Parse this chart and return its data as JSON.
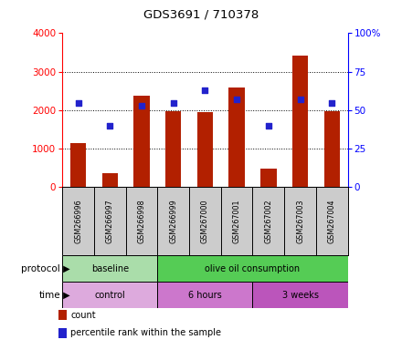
{
  "title": "GDS3691 / 710378",
  "samples": [
    "GSM266996",
    "GSM266997",
    "GSM266998",
    "GSM266999",
    "GSM267000",
    "GSM267001",
    "GSM267002",
    "GSM267003",
    "GSM267004"
  ],
  "counts": [
    1150,
    370,
    2380,
    1980,
    1960,
    2600,
    490,
    3430,
    1970
  ],
  "percentile_ranks": [
    55,
    40,
    53,
    55,
    63,
    57,
    40,
    57,
    55
  ],
  "ylim_left": [
    0,
    4000
  ],
  "ylim_right": [
    0,
    100
  ],
  "yticks_left": [
    0,
    1000,
    2000,
    3000,
    4000
  ],
  "yticks_right": [
    0,
    25,
    50,
    75,
    100
  ],
  "ytick_labels_right": [
    "0",
    "25",
    "50",
    "75",
    "100%"
  ],
  "bar_color": "#B22000",
  "dot_color": "#2222CC",
  "protocol_groups": [
    {
      "label": "baseline",
      "start": 0,
      "end": 3,
      "color": "#AADDAA"
    },
    {
      "label": "olive oil consumption",
      "start": 3,
      "end": 9,
      "color": "#55CC55"
    }
  ],
  "time_groups": [
    {
      "label": "control",
      "start": 0,
      "end": 3,
      "color": "#DDAADD"
    },
    {
      "label": "6 hours",
      "start": 3,
      "end": 6,
      "color": "#CC77CC"
    },
    {
      "label": "3 weeks",
      "start": 6,
      "end": 9,
      "color": "#BB55BB"
    }
  ],
  "legend_count_label": "count",
  "legend_pct_label": "percentile rank within the sample",
  "bg_color": "#FFFFFF",
  "tick_label_bg": "#CCCCCC"
}
